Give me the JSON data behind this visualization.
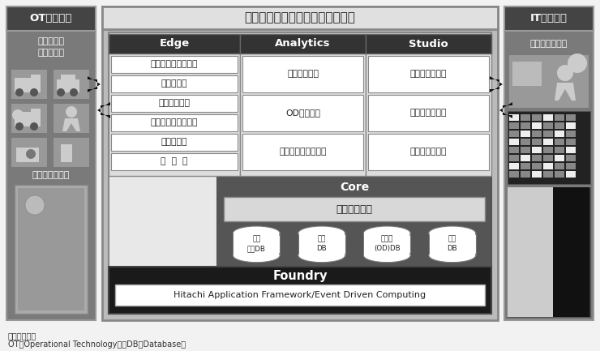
{
  "bg_color": "#f2f2f2",
  "title": "交通データ分析プラットフォーム",
  "ot_label": "OTアセット",
  "it_label": "ITアセット",
  "ot_sub": "交通データ\n移動データ",
  "it_sub": "ビジネスデータ",
  "ot_event": "イベントデータ",
  "footer1": "注：略語説明",
  "footer2": "OT（Operational Technology）、DB（Database）",
  "edge_title": "Edge",
  "analytics_title": "Analytics",
  "studio_title": "Studio",
  "core_title": "Core",
  "foundry_title": "Foundry",
  "foundry_sub": "Hitachi Application Framework/Event Driven Computing",
  "datalake_title": "データレイク",
  "edge_items": [
    "データクレンジング",
    "データ変換",
    "位置補正処理",
    "移動時間／速度算出",
    "匿名化処理"
  ],
  "analytics_items": [
    "交通状況分析",
    "OD需要分析",
    "交通／輸送需要分析"
  ],
  "studio_items": [
    "交通状況可視化",
    "運行状況可視化",
    "混雑状況可視化"
  ],
  "db_items": [
    "移動\n履歴DB",
    "挙動\nDB",
    "起終点\n(OD)DB",
    "地図\nDB"
  ],
  "side_bg": "#7a7a7a",
  "side_header_bg": "#444444",
  "side_text": "#ffffff",
  "main_outer_bg": "#bbbbbb",
  "main_outer_border": "#888888",
  "main_title_bg": "#e0e0e0",
  "main_inner_bg": "#e8e8e8",
  "col_header_bg": "#333333",
  "col_header_text": "#ffffff",
  "item_box_bg": "#ffffff",
  "item_box_border": "#888888",
  "core_bg": "#555555",
  "core_text": "#ffffff",
  "datalake_box_bg": "#d8d8d8",
  "datalake_box_border": "#888888",
  "db_box_bg": "#ffffff",
  "db_box_border": "#888888",
  "foundry_bg": "#1a1a1a",
  "foundry_text": "#ffffff",
  "foundry_inner_bg": "#ffffff",
  "foundry_inner_border": "#aaaaaa",
  "arrow_color": "#111111"
}
